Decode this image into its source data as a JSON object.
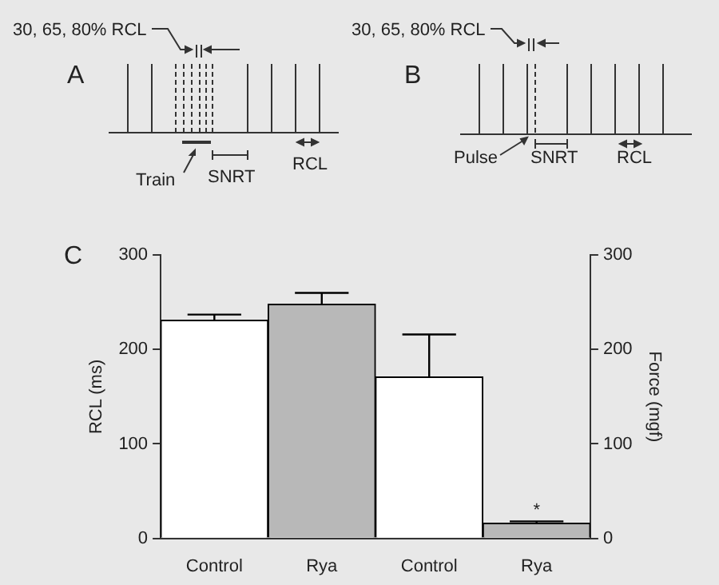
{
  "chart_data": {
    "type": "bar",
    "title": "C",
    "ylabel": "RCL (ms)",
    "y2label": "Force (mgf)",
    "categories": [
      "Control",
      "Rya",
      "Control",
      "Rya"
    ],
    "series": [
      {
        "colors": [
          "#ffffff",
          "#b8b8b8",
          "#ffffff",
          "#b8b8b8"
        ],
        "values": [
          231,
          248,
          null,
          null
        ],
        "errors": [
          [
            231,
            237
          ],
          [
            248,
            260
          ],
          null,
          null
        ]
      },
      {
        "axis": "y2",
        "colors": [
          "#ffffff",
          "#b8b8b8",
          "#ffffff",
          "#b8b8b8"
        ],
        "values": [
          null,
          null,
          171,
          16
        ],
        "errors": [
          null,
          null,
          [
            171,
            216
          ],
          [
            16,
            18
          ]
        ]
      }
    ],
    "ylim": [
      0,
      300
    ],
    "yticks": [
      0,
      100,
      200,
      300
    ],
    "y2lim": [
      0,
      300
    ],
    "y2ticks": [
      0,
      100,
      200,
      300
    ],
    "grid": false,
    "legend": false,
    "annotations": [
      "A",
      "30, 65, 80% RCL",
      "Train",
      "SNRT",
      "RCL",
      "B",
      "30, 65, 80% RCL",
      "Pulse",
      "SNRT",
      "RCL",
      "*"
    ]
  }
}
